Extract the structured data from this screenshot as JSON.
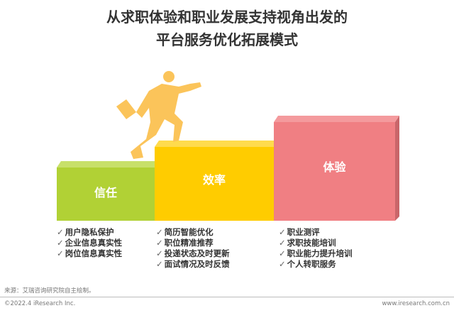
{
  "title": {
    "line1": "从求职体验和职业发展支持视角出发的",
    "line2": "平台服务优化拓展模式"
  },
  "colors": {
    "trust": "#b1d135",
    "efficiency": "#ffcc00",
    "experience": "#f07f83",
    "figure": "#fbc45a"
  },
  "blocks": [
    {
      "label": "信任",
      "items": [
        "用户隐私保护",
        "企业信息真实性",
        "岗位信息真实性"
      ]
    },
    {
      "label": "效率",
      "items": [
        "简历智能优化",
        "职位精准推荐",
        "投递状态及时更新",
        "面试情况及时反馈"
      ]
    },
    {
      "label": "体验",
      "items": [
        "职业测评",
        "求职技能培训",
        "职业能力提升培训",
        "个人转职服务"
      ]
    }
  ],
  "check": "✓",
  "footer": {
    "source": "来源：艾瑞咨询研究院自主绘制。",
    "copyright": "©2022.4 iResearch Inc.",
    "url": "www.iresearch.com.cn"
  }
}
